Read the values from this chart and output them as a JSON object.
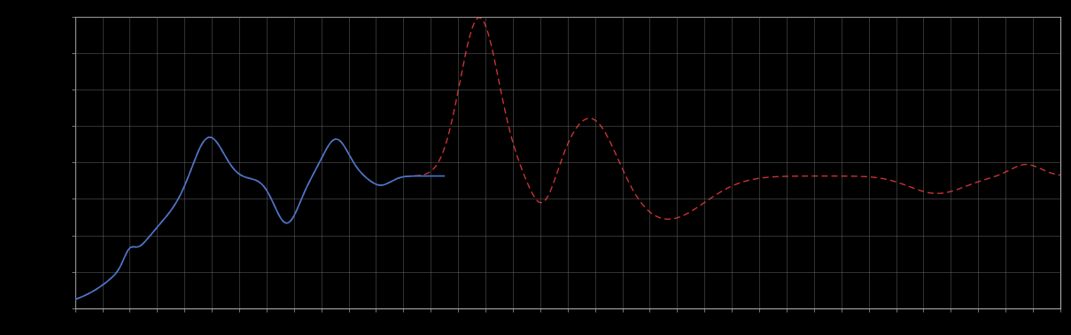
{
  "background_color": "#000000",
  "plot_bg_color": "#000000",
  "grid_color": "#777777",
  "line1_color": "#4477cc",
  "line2_color": "#cc3333",
  "figsize": [
    12.09,
    3.78
  ],
  "dpi": 100,
  "spine_color": "#aaaaaa",
  "tick_color": "#aaaaaa",
  "grid_nx": 36,
  "grid_ny": 8
}
